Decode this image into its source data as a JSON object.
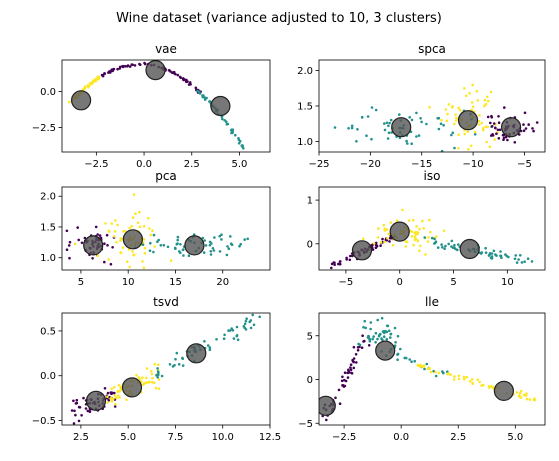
{
  "figure_title": "Wine dataset (variance adjusted to 10, 3 clusters)",
  "colors": {
    "0": "#440154",
    "1": "#21918c",
    "2": "#fde725",
    "centroid": "#555555"
  },
  "chart_data": [
    {
      "type": "scatter",
      "title": "vae",
      "xlim": [
        -4.3,
        6.6
      ],
      "ylim": [
        -4.2,
        2.2
      ],
      "xticks": [
        -2.5,
        0.0,
        2.5,
        5.0
      ],
      "xtick_labels": [
        "−2.5",
        "0.0",
        "2.5",
        "5.0"
      ],
      "yticks": [
        -2.5,
        0.0
      ],
      "ytick_labels": [
        "−2.5",
        "0.0"
      ],
      "clusters": [
        {
          "label": 2,
          "shape": "arc",
          "x": [
            -3.9,
            -2.3
          ],
          "seed": 11,
          "n": 45
        },
        {
          "label": 0,
          "shape": "arc",
          "x": [
            -2.3,
            3.0
          ],
          "seed": 12,
          "n": 75
        },
        {
          "label": 1,
          "shape": "arc",
          "x": [
            2.8,
            6.0
          ],
          "seed": 13,
          "n": 60
        }
      ],
      "curve": {
        "a": -0.2,
        "peak_x": -0.2,
        "peak_y": 1.9
      },
      "centroids": [
        {
          "x": -3.3,
          "y": -0.6
        },
        {
          "x": 0.6,
          "y": 1.5
        },
        {
          "x": 4.0,
          "y": -1.0
        }
      ]
    },
    {
      "type": "scatter",
      "title": "spca",
      "xlim": [
        -25,
        -3
      ],
      "ylim": [
        0.85,
        2.15
      ],
      "xticks": [
        -25,
        -20,
        -15,
        -10,
        -5
      ],
      "xtick_labels": [
        "−25",
        "−20",
        "−15",
        "−10",
        "−5"
      ],
      "yticks": [
        1.0,
        1.5,
        2.0
      ],
      "ytick_labels": [
        "1.0",
        "1.5",
        "2.0"
      ],
      "clusters": [
        {
          "label": 1,
          "shape": "blob",
          "cx": -17,
          "cy": 1.2,
          "sx": 3.5,
          "sy": 0.12,
          "seed": 21,
          "n": 60
        },
        {
          "label": 2,
          "shape": "blob",
          "cx": -10.5,
          "cy": 1.3,
          "sx": 1.4,
          "sy": 0.22,
          "seed": 22,
          "n": 65
        },
        {
          "label": 0,
          "shape": "blob",
          "cx": -6.3,
          "cy": 1.2,
          "sx": 1.3,
          "sy": 0.11,
          "seed": 23,
          "n": 55
        }
      ],
      "centroids": [
        {
          "x": -17,
          "y": 1.2
        },
        {
          "x": -10.5,
          "y": 1.3
        },
        {
          "x": -6.3,
          "y": 1.2
        }
      ]
    },
    {
      "type": "scatter",
      "title": "pca",
      "xlim": [
        3,
        25
      ],
      "ylim": [
        0.8,
        2.15
      ],
      "xticks": [
        5,
        10,
        15,
        20
      ],
      "xtick_labels": [
        "5",
        "10",
        "15",
        "20"
      ],
      "yticks": [
        1.0,
        1.5,
        2.0
      ],
      "ytick_labels": [
        "1.0",
        "1.5",
        "2.0"
      ],
      "clusters": [
        {
          "label": 0,
          "shape": "blob",
          "cx": 6.3,
          "cy": 1.2,
          "sx": 1.3,
          "sy": 0.12,
          "seed": 31,
          "n": 55
        },
        {
          "label": 2,
          "shape": "blob",
          "cx": 10.5,
          "cy": 1.3,
          "sx": 1.4,
          "sy": 0.22,
          "seed": 32,
          "n": 65
        },
        {
          "label": 1,
          "shape": "blob",
          "cx": 17,
          "cy": 1.2,
          "sx": 3.5,
          "sy": 0.1,
          "seed": 33,
          "n": 60
        }
      ],
      "centroids": [
        {
          "x": 6.3,
          "y": 1.2
        },
        {
          "x": 10.5,
          "y": 1.3
        },
        {
          "x": 17,
          "y": 1.2
        }
      ]
    },
    {
      "type": "scatter",
      "title": "iso",
      "xlim": [
        -7.5,
        13.5
      ],
      "ylim": [
        -0.6,
        1.3
      ],
      "xticks": [
        -5,
        0,
        5,
        10
      ],
      "xtick_labels": [
        "−5",
        "0",
        "5",
        "10"
      ],
      "yticks": [
        0,
        1
      ],
      "ytick_labels": [
        "0",
        "1"
      ],
      "clusters": [
        {
          "label": 0,
          "shape": "line",
          "x0": -6.5,
          "y0": -0.5,
          "x1": -0.5,
          "y1": 0.15,
          "spread": 0.05,
          "seed": 41,
          "n": 55
        },
        {
          "label": 2,
          "shape": "blob",
          "cx": 0.5,
          "cy": 0.25,
          "sx": 1.6,
          "sy": 0.2,
          "seed": 42,
          "n": 65
        },
        {
          "label": 1,
          "shape": "line",
          "x0": 2.0,
          "y0": 0.1,
          "x1": 12.5,
          "y1": -0.45,
          "spread": 0.06,
          "seed": 43,
          "n": 60
        }
      ],
      "centroids": [
        {
          "x": -3.5,
          "y": -0.15
        },
        {
          "x": 0.0,
          "y": 0.28
        },
        {
          "x": 6.5,
          "y": -0.12
        }
      ]
    },
    {
      "type": "scatter",
      "title": "tsvd",
      "xlim": [
        1.5,
        12.5
      ],
      "ylim": [
        -0.55,
        0.7
      ],
      "xticks": [
        2.5,
        5.0,
        7.5,
        10.0,
        12.5
      ],
      "xtick_labels": [
        "2.5",
        "5.0",
        "7.5",
        "10.0",
        "12.5"
      ],
      "yticks": [
        -0.5,
        0.0,
        0.5
      ],
      "ytick_labels": [
        "−0.5",
        "0.0",
        "0.5"
      ],
      "clusters": [
        {
          "label": 0,
          "shape": "line",
          "x0": 2.0,
          "y0": -0.4,
          "x1": 4.3,
          "y1": -0.2,
          "spread": 0.06,
          "seed": 51,
          "n": 55
        },
        {
          "label": 2,
          "shape": "line",
          "x0": 3.8,
          "y0": -0.25,
          "x1": 6.7,
          "y1": 0.02,
          "spread": 0.07,
          "seed": 52,
          "n": 65
        },
        {
          "label": 1,
          "shape": "line",
          "x0": 6.5,
          "y0": 0.05,
          "x1": 12.0,
          "y1": 0.63,
          "spread": 0.05,
          "seed": 53,
          "n": 60
        }
      ],
      "centroids": [
        {
          "x": 3.3,
          "y": -0.28
        },
        {
          "x": 5.2,
          "y": -0.13
        },
        {
          "x": 8.6,
          "y": 0.25
        }
      ]
    },
    {
      "type": "scatter",
      "title": "lle",
      "xlim": [
        -3.6,
        6.3
      ],
      "ylim": [
        -5.2,
        7.6
      ],
      "xticks": [
        -2.5,
        0.0,
        2.5,
        5.0
      ],
      "xtick_labels": [
        "−2.5",
        "0.0",
        "2.5",
        "5.0"
      ],
      "yticks": [
        -5,
        0,
        5
      ],
      "ytick_labels": [
        "−5",
        "0",
        "5"
      ],
      "clusters": [
        {
          "label": 0,
          "shape": "line",
          "x0": -3.4,
          "y0": -4.8,
          "x1": -1.6,
          "y1": 4.5,
          "spread": 0.25,
          "seed": 61,
          "n": 55
        },
        {
          "label": 1,
          "shape": "blob",
          "cx": -1.0,
          "cy": 4.8,
          "sx": 0.45,
          "sy": 0.9,
          "seed": 62,
          "n": 45
        },
        {
          "label": 1,
          "shape": "line",
          "x0": -0.5,
          "y0": 3.2,
          "x1": 2.0,
          "y1": 0.6,
          "spread": 0.25,
          "seed": 64,
          "n": 20
        },
        {
          "label": 2,
          "shape": "line",
          "x0": 0.5,
          "y0": 1.8,
          "x1": 6.0,
          "y1": -2.4,
          "spread": 0.15,
          "seed": 63,
          "n": 65
        }
      ],
      "centroids": [
        {
          "x": -3.3,
          "y": -3.0
        },
        {
          "x": -0.7,
          "y": 3.3
        },
        {
          "x": 4.5,
          "y": -1.3
        }
      ]
    }
  ]
}
